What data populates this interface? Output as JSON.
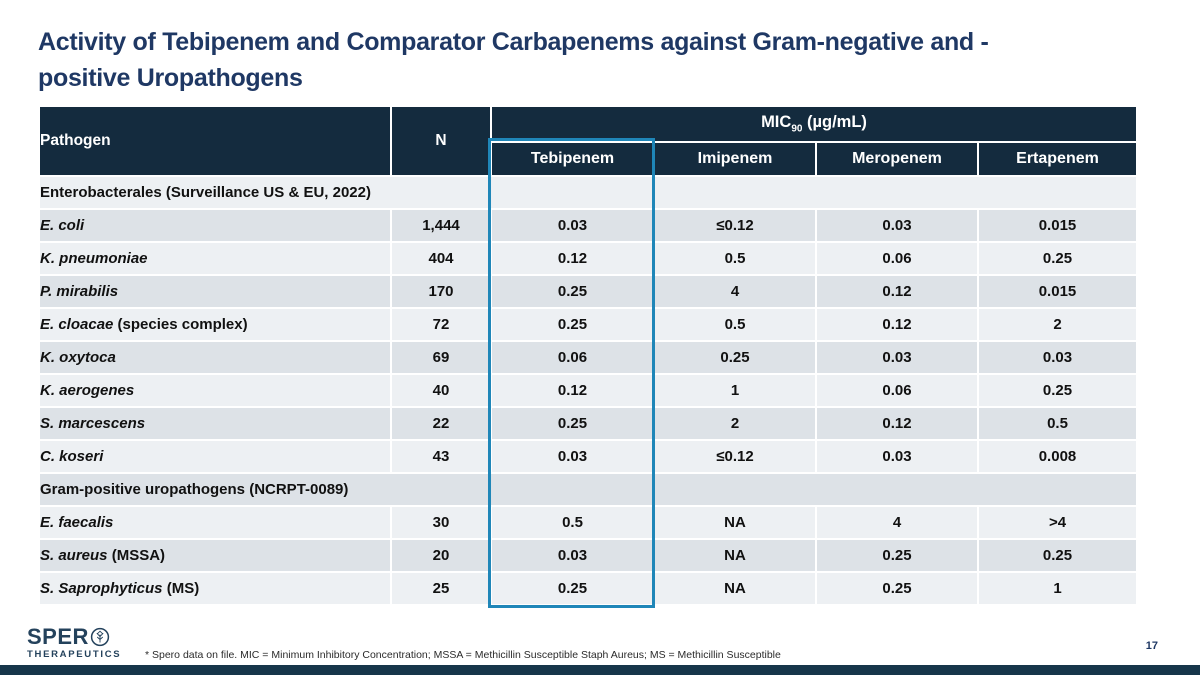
{
  "slide": {
    "title_line1": "Activity of Tebipenem and Comparator Carbapenems against Gram-negative and -",
    "title_line2": "positive Uropathogens",
    "page_number": "17",
    "footnote": "* Spero data on file. MIC = Minimum Inhibitory Concentration; MSSA = Methicillin Susceptible Staph Aureus; MS = Methicillin Susceptible",
    "logo": {
      "brand": "SPER",
      "brand_o_icon": "tree-in-circle",
      "sub": "THERAPEUTICS"
    }
  },
  "colors": {
    "title_navy": "#1F3864",
    "header_navy": "#142B3E",
    "accent_teal": "#1F86B8",
    "row_light": "#EDF0F3",
    "row_dark": "#DDE2E7",
    "bottom_bar": "#16364A"
  },
  "table": {
    "header": {
      "pathogen": "Pathogen",
      "n": "N",
      "mic_label": "MIC",
      "mic_sub": "90",
      "mic_unit": " (µg/mL)",
      "drugs": [
        "Tebipenem",
        "Imipenem",
        "Meropenem",
        "Ertapenem"
      ]
    },
    "rows": [
      {
        "type": "section",
        "label": "Enterobacterales (Surveillance US & EU, 2022)"
      },
      {
        "type": "data",
        "pathogen": "E. coli",
        "suffix": "",
        "n": "1,444",
        "values": [
          "0.03",
          "≤0.12",
          "0.03",
          "0.015"
        ]
      },
      {
        "type": "data",
        "pathogen": "K. pneumoniae",
        "suffix": "",
        "n": "404",
        "values": [
          "0.12",
          "0.5",
          "0.06",
          "0.25"
        ]
      },
      {
        "type": "data",
        "pathogen": "P. mirabilis",
        "suffix": "",
        "n": "170",
        "values": [
          "0.25",
          "4",
          "0.12",
          "0.015"
        ]
      },
      {
        "type": "data",
        "pathogen": "E. cloacae",
        "suffix": " (species complex)",
        "n": "72",
        "values": [
          "0.25",
          "0.5",
          "0.12",
          "2"
        ]
      },
      {
        "type": "data",
        "pathogen": "K. oxytoca",
        "suffix": "",
        "n": "69",
        "values": [
          "0.06",
          "0.25",
          "0.03",
          "0.03"
        ]
      },
      {
        "type": "data",
        "pathogen": "K. aerogenes",
        "suffix": "",
        "n": "40",
        "values": [
          "0.12",
          "1",
          "0.06",
          "0.25"
        ]
      },
      {
        "type": "data",
        "pathogen": "S. marcescens",
        "suffix": "",
        "n": "22",
        "values": [
          "0.25",
          "2",
          "0.12",
          "0.5"
        ]
      },
      {
        "type": "data",
        "pathogen": "C. koseri",
        "suffix": "",
        "n": "43",
        "values": [
          "0.03",
          "≤0.12",
          "0.03",
          "0.008"
        ]
      },
      {
        "type": "section",
        "label": "Gram-positive uropathogens (NCRPT-0089)"
      },
      {
        "type": "data",
        "pathogen": "E. faecalis",
        "suffix": "",
        "n": "30",
        "values": [
          "0.5",
          "NA",
          "4",
          ">4"
        ]
      },
      {
        "type": "data",
        "pathogen": "S. aureus",
        "suffix": " (MSSA)",
        "n": "20",
        "values": [
          "0.03",
          "NA",
          "0.25",
          "0.25"
        ]
      },
      {
        "type": "data",
        "pathogen": "S. Saprophyticus",
        "suffix": " (MS)",
        "n": "25",
        "values": [
          "0.25",
          "NA",
          "0.25",
          "1"
        ]
      }
    ]
  }
}
